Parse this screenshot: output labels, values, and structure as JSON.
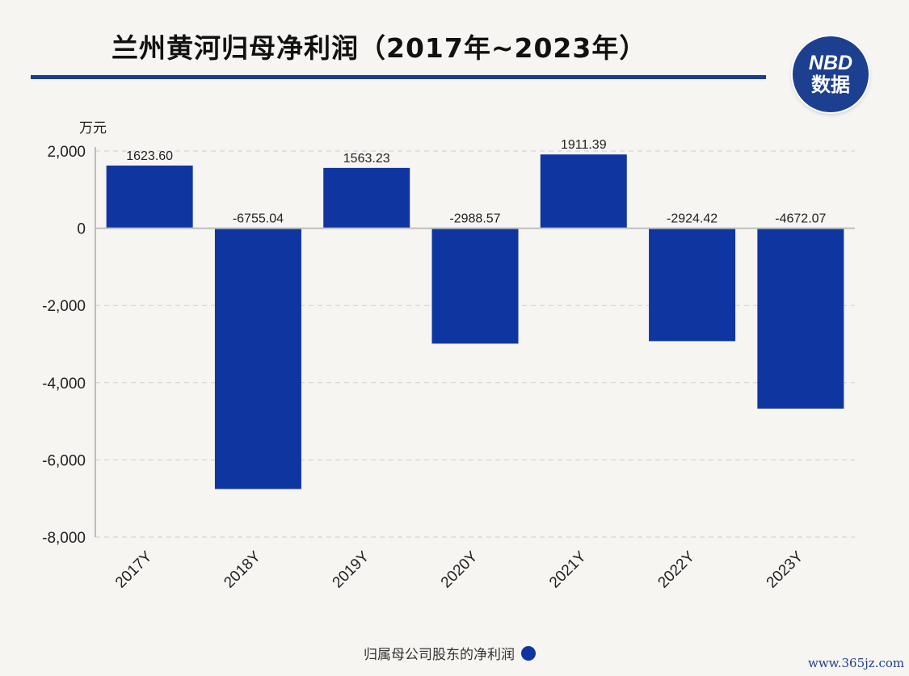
{
  "title": "兰州黄河归母净利润（2017年~2023年）",
  "logo": {
    "top": "NBD",
    "bottom": "数据"
  },
  "unit_label": "万元",
  "legend_label": "归属母公司股东的净利润",
  "source_text": "www.365jz.com",
  "colors": {
    "bar": "#0f36a0",
    "title_rule": "#1a3d8f",
    "logo": "#1d3f8f"
  },
  "chart_data": {
    "type": "bar",
    "categories": [
      "2017Y",
      "2018Y",
      "2019Y",
      "2020Y",
      "2021Y",
      "2022Y",
      "2023Y"
    ],
    "series": [
      {
        "name": "归属母公司股东的净利润",
        "values": [
          1623.6,
          -6755.04,
          1563.23,
          -2988.57,
          1911.39,
          -2924.42,
          -4672.07
        ]
      }
    ],
    "data_labels": [
      "1623.60",
      "-6755.04",
      "1563.23",
      "-2988.57",
      "1911.39",
      "-2924.42",
      "-4672.07"
    ],
    "ylim": [
      -8000,
      2000
    ],
    "yticks": [
      2000,
      0,
      -2000,
      -4000,
      -6000,
      -8000
    ],
    "ytick_labels": [
      "2,000",
      "0",
      "-2,000",
      "-4,000",
      "-6,000",
      "-8,000"
    ],
    "ylabel": "万元",
    "grid": true,
    "legend_position": "bottom"
  }
}
